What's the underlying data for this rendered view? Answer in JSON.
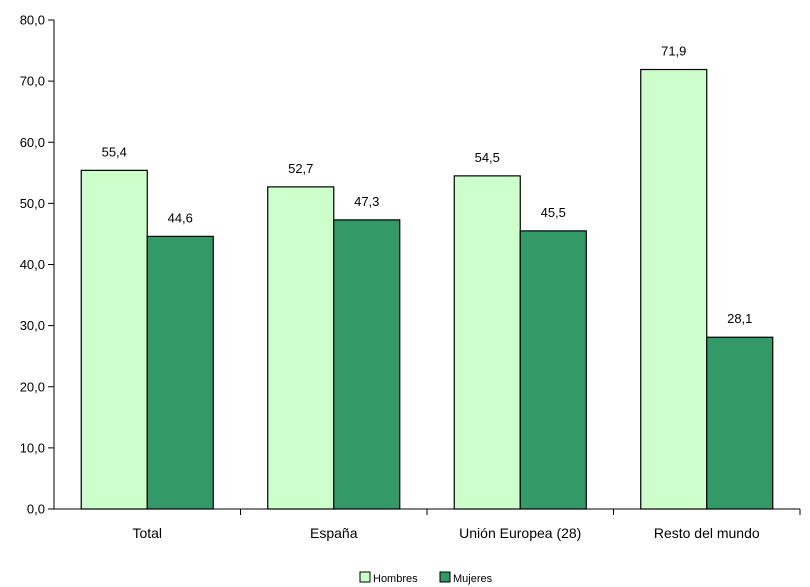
{
  "chart_data": {
    "type": "bar",
    "categories": [
      "Total",
      "España",
      "Unión Europea (28)",
      "Resto del mundo"
    ],
    "series": [
      {
        "name": "Hombres",
        "values": [
          55.4,
          52.7,
          54.5,
          71.9
        ],
        "labels": [
          "55,4",
          "52,7",
          "54,5",
          "71,9"
        ],
        "color": "#ccffcc"
      },
      {
        "name": "Mujeres",
        "values": [
          44.6,
          47.3,
          45.5,
          28.1
        ],
        "labels": [
          "44,6",
          "47,3",
          "45,5",
          "28,1"
        ],
        "color": "#339966"
      }
    ],
    "ylim": [
      0,
      80
    ],
    "yticks": [
      0,
      10,
      20,
      30,
      40,
      50,
      60,
      70,
      80
    ],
    "ytick_labels": [
      "0,0",
      "10,0",
      "20,0",
      "30,0",
      "40,0",
      "50,0",
      "60,0",
      "70,0",
      "80,0"
    ],
    "grid": false,
    "legend_position": "bottom-center"
  }
}
